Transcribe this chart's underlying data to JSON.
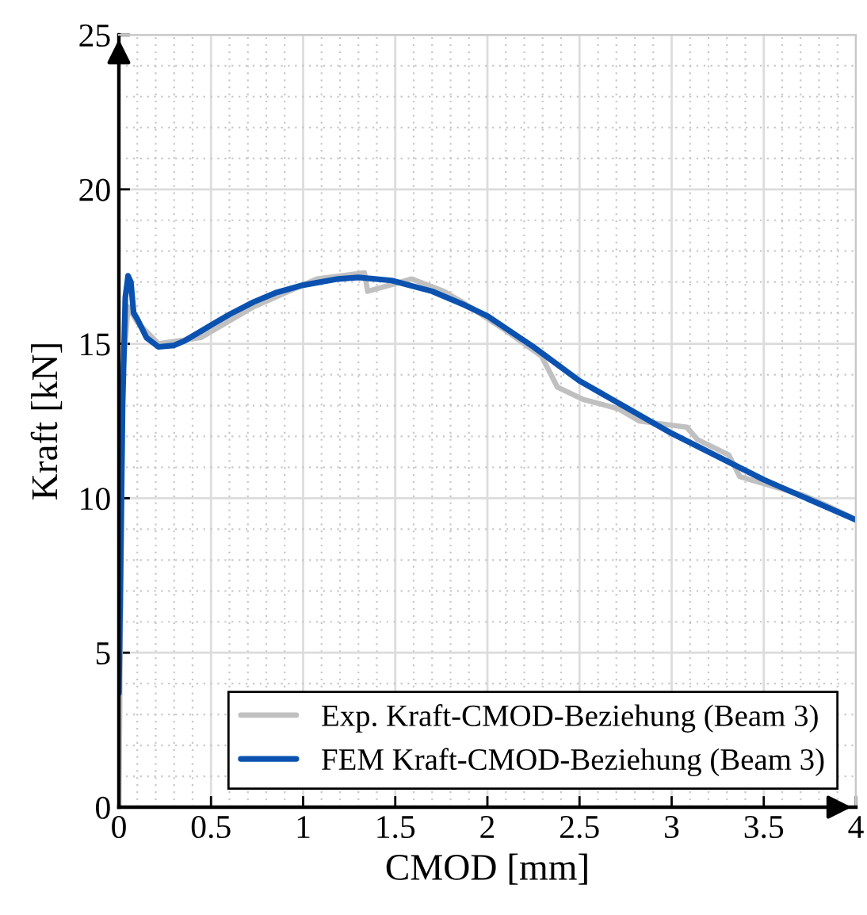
{
  "chart_data": {
    "type": "line",
    "xlabel": "CMOD [mm]",
    "ylabel": "Kraft [kN]",
    "xlim": [
      0,
      4
    ],
    "ylim": [
      0,
      25
    ],
    "xticks": [
      0,
      0.5,
      1,
      1.5,
      2,
      2.5,
      3,
      3.5,
      4
    ],
    "yticks": [
      0,
      5,
      10,
      15,
      20,
      25
    ],
    "grid": true,
    "legend": "bottom right",
    "marker": "none",
    "line_style": "solid",
    "series": [
      {
        "name": "Exp. Kraft-CMOD-Beziehung (Beam 3)",
        "color": "#c0c0c0",
        "x": [
          0,
          0.02,
          0.05,
          0.1,
          0.215,
          0.444,
          0.731,
          1.075,
          1.333,
          1.35,
          1.59,
          1.763,
          1.878,
          2.107,
          2.294,
          2.38,
          2.52,
          2.71,
          2.824,
          3.082,
          3.14,
          3.31,
          3.37,
          3.713,
          3.83,
          3.97
        ],
        "values": [
          0,
          14,
          16.2,
          15.7,
          15.0,
          15.2,
          16.2,
          17.1,
          17.3,
          16.7,
          17.1,
          16.7,
          16.3,
          15.4,
          14.6,
          13.6,
          13.2,
          12.9,
          12.5,
          12.3,
          11.9,
          11.4,
          10.7,
          10.1,
          9.8,
          9.4
        ]
      },
      {
        "name": "FEM Kraft-CMOD-Beziehung (Beam 3)",
        "color": "#0b52b0",
        "x": [
          0,
          0.01,
          0.02,
          0.035,
          0.05,
          0.065,
          0.08,
          0.1,
          0.15,
          0.215,
          0.3,
          0.358,
          0.5,
          0.6,
          0.73,
          0.85,
          1.0,
          1.19,
          1.3,
          1.48,
          1.7,
          1.878,
          2.0,
          2.25,
          2.5,
          3.0,
          3.5,
          4.0
        ],
        "values": [
          3.7,
          8,
          13,
          16.5,
          17.2,
          17.0,
          16.0,
          15.8,
          15.2,
          14.9,
          14.95,
          15.1,
          15.6,
          15.95,
          16.35,
          16.65,
          16.9,
          17.1,
          17.15,
          17.05,
          16.7,
          16.25,
          15.9,
          14.9,
          13.8,
          12.1,
          10.6,
          9.3
        ]
      }
    ]
  }
}
